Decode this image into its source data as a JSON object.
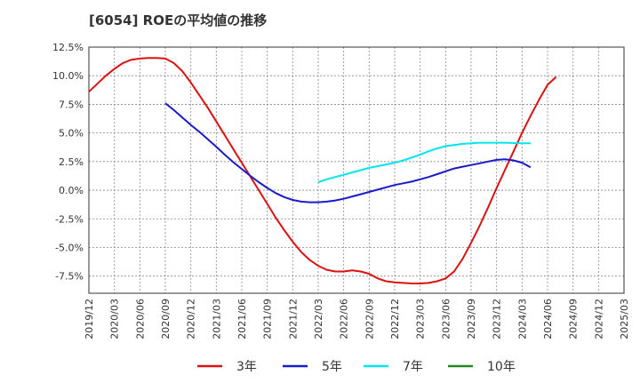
{
  "chart_data": {
    "type": "line",
    "title": "[6054]  ROEの平均値の推移",
    "xlabel": "",
    "ylabel": "",
    "ylim": [
      -9.0,
      12.5
    ],
    "yticks": [
      12.5,
      10.0,
      7.5,
      5.0,
      2.5,
      0.0,
      -2.5,
      -5.0,
      -7.5
    ],
    "ytick_labels": [
      "12.5%",
      "10.0%",
      "7.5%",
      "5.0%",
      "2.5%",
      "0.0%",
      "-2.5%",
      "-5.0%",
      "-7.5%"
    ],
    "xtick_labels": [
      "2019/12",
      "2020/03",
      "2020/06",
      "2020/09",
      "2020/12",
      "2021/03",
      "2021/06",
      "2021/09",
      "2021/12",
      "2022/03",
      "2022/06",
      "2022/09",
      "2022/12",
      "2023/03",
      "2023/06",
      "2023/09",
      "2023/12",
      "2024/03",
      "2024/06",
      "2024/09",
      "2024/12",
      "2025/03"
    ],
    "grid": true,
    "legend_position": "bottom",
    "series": [
      {
        "name": "3年",
        "color": "#dd1111",
        "points": [
          [
            "2019/12",
            8.6
          ],
          [
            "2020/01",
            9.3
          ],
          [
            "2020/02",
            10.0
          ],
          [
            "2020/03",
            10.6
          ],
          [
            "2020/04",
            11.1
          ],
          [
            "2020/05",
            11.4
          ],
          [
            "2020/06",
            11.5
          ],
          [
            "2020/07",
            11.55
          ],
          [
            "2020/08",
            11.55
          ],
          [
            "2020/09",
            11.5
          ],
          [
            "2020/10",
            11.1
          ],
          [
            "2020/11",
            10.4
          ],
          [
            "2020/12",
            9.4
          ],
          [
            "2021/01",
            8.3
          ],
          [
            "2021/02",
            7.2
          ],
          [
            "2021/03",
            6.0
          ],
          [
            "2021/04",
            4.8
          ],
          [
            "2021/05",
            3.6
          ],
          [
            "2021/06",
            2.4
          ],
          [
            "2021/07",
            1.2
          ],
          [
            "2021/08",
            0.0
          ],
          [
            "2021/09",
            -1.2
          ],
          [
            "2021/10",
            -2.4
          ],
          [
            "2021/11",
            -3.5
          ],
          [
            "2021/12",
            -4.5
          ],
          [
            "2022/01",
            -5.4
          ],
          [
            "2022/02",
            -6.1
          ],
          [
            "2022/03",
            -6.6
          ],
          [
            "2022/04",
            -6.95
          ],
          [
            "2022/05",
            -7.1
          ],
          [
            "2022/06",
            -7.1
          ],
          [
            "2022/07",
            -7.0
          ],
          [
            "2022/08",
            -7.1
          ],
          [
            "2022/09",
            -7.3
          ],
          [
            "2022/10",
            -7.7
          ],
          [
            "2022/11",
            -7.95
          ],
          [
            "2022/12",
            -8.05
          ],
          [
            "2023/01",
            -8.1
          ],
          [
            "2023/02",
            -8.15
          ],
          [
            "2023/03",
            -8.15
          ],
          [
            "2023/04",
            -8.1
          ],
          [
            "2023/05",
            -7.95
          ],
          [
            "2023/06",
            -7.7
          ],
          [
            "2023/07",
            -7.1
          ],
          [
            "2023/08",
            -6.0
          ],
          [
            "2023/09",
            -4.6
          ],
          [
            "2023/10",
            -3.1
          ],
          [
            "2023/11",
            -1.5
          ],
          [
            "2023/12",
            0.2
          ],
          [
            "2024/01",
            1.8
          ],
          [
            "2024/02",
            3.4
          ],
          [
            "2024/03",
            5.0
          ],
          [
            "2024/04",
            6.5
          ],
          [
            "2024/05",
            7.9
          ],
          [
            "2024/06",
            9.2
          ],
          [
            "2024/07",
            9.9
          ]
        ]
      },
      {
        "name": "5年",
        "color": "#1a1acc",
        "points": [
          [
            "2020/09",
            7.6
          ],
          [
            "2020/10",
            7.0
          ],
          [
            "2020/11",
            6.35
          ],
          [
            "2020/12",
            5.7
          ],
          [
            "2021/01",
            5.1
          ],
          [
            "2021/02",
            4.45
          ],
          [
            "2021/03",
            3.8
          ],
          [
            "2021/04",
            3.1
          ],
          [
            "2021/05",
            2.45
          ],
          [
            "2021/06",
            1.85
          ],
          [
            "2021/07",
            1.25
          ],
          [
            "2021/08",
            0.7
          ],
          [
            "2021/09",
            0.2
          ],
          [
            "2021/10",
            -0.25
          ],
          [
            "2021/11",
            -0.6
          ],
          [
            "2021/12",
            -0.85
          ],
          [
            "2022/01",
            -1.0
          ],
          [
            "2022/02",
            -1.05
          ],
          [
            "2022/03",
            -1.05
          ],
          [
            "2022/04",
            -1.0
          ],
          [
            "2022/05",
            -0.9
          ],
          [
            "2022/06",
            -0.75
          ],
          [
            "2022/07",
            -0.55
          ],
          [
            "2022/08",
            -0.35
          ],
          [
            "2022/09",
            -0.15
          ],
          [
            "2022/10",
            0.05
          ],
          [
            "2022/11",
            0.25
          ],
          [
            "2022/12",
            0.45
          ],
          [
            "2023/01",
            0.6
          ],
          [
            "2023/02",
            0.75
          ],
          [
            "2023/03",
            0.95
          ],
          [
            "2023/04",
            1.15
          ],
          [
            "2023/05",
            1.4
          ],
          [
            "2023/06",
            1.65
          ],
          [
            "2023/07",
            1.9
          ],
          [
            "2023/08",
            2.05
          ],
          [
            "2023/09",
            2.2
          ],
          [
            "2023/10",
            2.35
          ],
          [
            "2023/11",
            2.5
          ],
          [
            "2023/12",
            2.65
          ],
          [
            "2024/01",
            2.7
          ],
          [
            "2024/02",
            2.6
          ],
          [
            "2024/03",
            2.4
          ],
          [
            "2024/04",
            2.0
          ]
        ]
      },
      {
        "name": "7年",
        "color": "#00e5ee",
        "points": [
          [
            "2022/03",
            0.7
          ],
          [
            "2022/04",
            0.95
          ],
          [
            "2022/05",
            1.15
          ],
          [
            "2022/06",
            1.35
          ],
          [
            "2022/07",
            1.55
          ],
          [
            "2022/08",
            1.75
          ],
          [
            "2022/09",
            1.95
          ],
          [
            "2022/10",
            2.1
          ],
          [
            "2022/11",
            2.25
          ],
          [
            "2022/12",
            2.4
          ],
          [
            "2023/01",
            2.6
          ],
          [
            "2023/02",
            2.85
          ],
          [
            "2023/03",
            3.1
          ],
          [
            "2023/04",
            3.4
          ],
          [
            "2023/05",
            3.65
          ],
          [
            "2023/06",
            3.85
          ],
          [
            "2023/07",
            3.95
          ],
          [
            "2023/08",
            4.05
          ],
          [
            "2023/09",
            4.1
          ],
          [
            "2023/10",
            4.15
          ],
          [
            "2023/11",
            4.15
          ],
          [
            "2023/12",
            4.15
          ],
          [
            "2024/01",
            4.15
          ],
          [
            "2024/02",
            4.12
          ],
          [
            "2024/03",
            4.1
          ],
          [
            "2024/04",
            4.1
          ]
        ]
      },
      {
        "name": "10年",
        "color": "#228822",
        "points": []
      }
    ]
  }
}
